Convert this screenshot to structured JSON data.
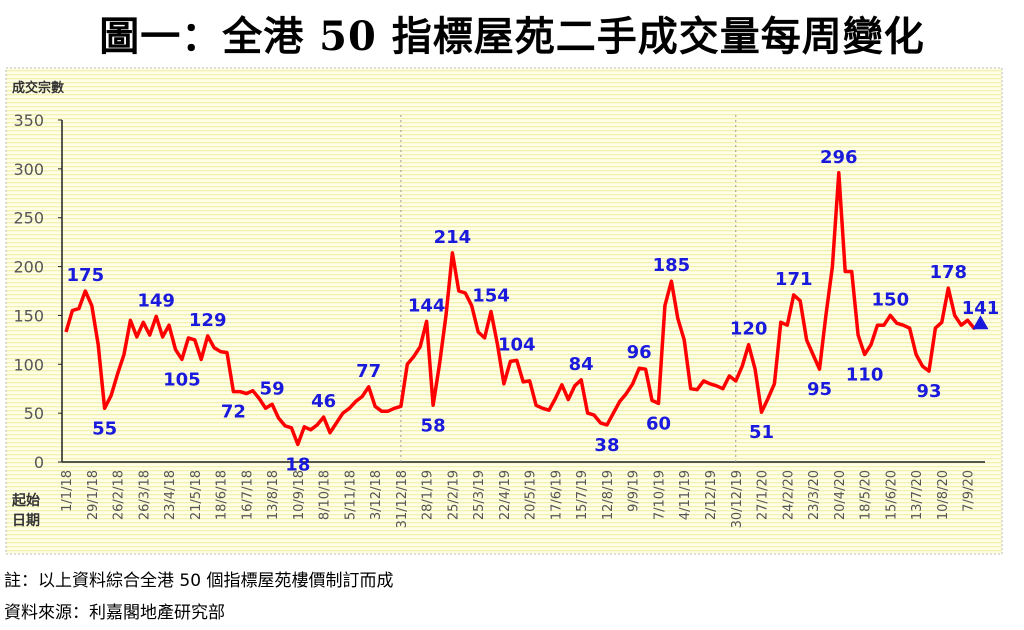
{
  "title": "圖一：全港 50 指標屋苑二手成交量每周變化",
  "notes": [
    "註：以上資料綜合全港 50 個指標屋苑樓價制訂而成",
    "資料來源：利嘉閣地產研究部"
  ],
  "colors": {
    "line": "#ff0000",
    "labels": "#1a1adc",
    "background": "#ffffe0",
    "last_marker": "#1a1adc"
  },
  "chart_data": {
    "type": "line",
    "title": "圖一：全港 50 指標屋苑二手成交量每周變化",
    "ylabel": "成交宗數",
    "xlabel": "起始日期",
    "xlabel_lines": [
      "起始",
      "日期"
    ],
    "ylim": [
      0,
      350
    ],
    "yticks": [
      0,
      50,
      100,
      150,
      200,
      250,
      300,
      350
    ],
    "grid": false,
    "x_tick_every": 4,
    "x_ticks": [
      "1/1/18",
      "29/1/18",
      "26/2/18",
      "26/3/18",
      "23/4/18",
      "21/5/18",
      "18/6/18",
      "16/7/18",
      "13/8/18",
      "10/9/18",
      "8/10/18",
      "5/11/18",
      "3/12/18",
      "31/12/18",
      "28/1/19",
      "25/2/19",
      "25/3/19",
      "22/4/19",
      "20/5/19",
      "17/6/19",
      "15/7/19",
      "12/8/19",
      "9/9/19",
      "7/10/19",
      "4/11/19",
      "2/12/19",
      "30/12/19",
      "27/1/20",
      "24/2/20",
      "23/3/20",
      "20/4/20",
      "18/5/20",
      "15/6/20",
      "13/7/20",
      "10/8/20",
      "7/9/20"
    ],
    "year_dividers": [
      "31/12/18",
      "30/12/19"
    ],
    "values": [
      133,
      155,
      157,
      175,
      160,
      120,
      55,
      68,
      90,
      110,
      145,
      128,
      143,
      130,
      149,
      128,
      140,
      115,
      105,
      127,
      125,
      105,
      129,
      117,
      113,
      112,
      72,
      72,
      70,
      73,
      65,
      55,
      59,
      45,
      37,
      35,
      18,
      36,
      33,
      38,
      46,
      30,
      40,
      50,
      55,
      62,
      67,
      77,
      57,
      52,
      52,
      55,
      57,
      100,
      108,
      118,
      144,
      58,
      100,
      150,
      214,
      175,
      173,
      160,
      133,
      127,
      154,
      120,
      80,
      103,
      104,
      82,
      83,
      58,
      55,
      53,
      65,
      79,
      64,
      78,
      84,
      50,
      48,
      40,
      38,
      50,
      62,
      70,
      80,
      96,
      95,
      63,
      60,
      160,
      185,
      147,
      125,
      75,
      74,
      83,
      80,
      78,
      75,
      88,
      83,
      98,
      120,
      95,
      51,
      65,
      80,
      143,
      140,
      171,
      165,
      125,
      110,
      95,
      150,
      200,
      296,
      195,
      195,
      130,
      110,
      120,
      140,
      140,
      150,
      142,
      140,
      137,
      110,
      98,
      93,
      137,
      143,
      178,
      150,
      140,
      145,
      137,
      141
    ],
    "annotations": [
      {
        "index": 3,
        "text": "175",
        "pos": "above"
      },
      {
        "index": 6,
        "text": "55",
        "pos": "below"
      },
      {
        "index": 14,
        "text": "149",
        "pos": "above"
      },
      {
        "index": 18,
        "text": "105",
        "pos": "below"
      },
      {
        "index": 22,
        "text": "129",
        "pos": "above"
      },
      {
        "index": 26,
        "text": "72",
        "pos": "below"
      },
      {
        "index": 32,
        "text": "59",
        "pos": "above"
      },
      {
        "index": 36,
        "text": "18",
        "pos": "below"
      },
      {
        "index": 40,
        "text": "46",
        "pos": "above"
      },
      {
        "index": 47,
        "text": "77",
        "pos": "above"
      },
      {
        "index": 56,
        "text": "144",
        "pos": "above"
      },
      {
        "index": 57,
        "text": "58",
        "pos": "below"
      },
      {
        "index": 60,
        "text": "214",
        "pos": "above"
      },
      {
        "index": 66,
        "text": "154",
        "pos": "above"
      },
      {
        "index": 70,
        "text": "104",
        "pos": "above"
      },
      {
        "index": 80,
        "text": "84",
        "pos": "above"
      },
      {
        "index": 84,
        "text": "38",
        "pos": "below"
      },
      {
        "index": 89,
        "text": "96",
        "pos": "above"
      },
      {
        "index": 92,
        "text": "60",
        "pos": "below"
      },
      {
        "index": 94,
        "text": "185",
        "pos": "above"
      },
      {
        "index": 106,
        "text": "120",
        "pos": "above"
      },
      {
        "index": 108,
        "text": "51",
        "pos": "below"
      },
      {
        "index": 113,
        "text": "171",
        "pos": "above"
      },
      {
        "index": 117,
        "text": "95",
        "pos": "below"
      },
      {
        "index": 120,
        "text": "296",
        "pos": "above"
      },
      {
        "index": 124,
        "text": "110",
        "pos": "below"
      },
      {
        "index": 128,
        "text": "150",
        "pos": "above"
      },
      {
        "index": 134,
        "text": "93",
        "pos": "below"
      },
      {
        "index": 137,
        "text": "178",
        "pos": "above"
      },
      {
        "index": 142,
        "text": "141",
        "pos": "above"
      }
    ],
    "last_point_marker": "triangle"
  }
}
